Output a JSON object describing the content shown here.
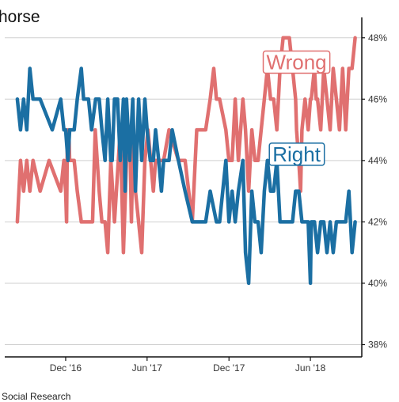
{
  "chart_data": {
    "type": "line",
    "title": "horse",
    "source": "Social Research",
    "xlabel": "",
    "ylabel": "",
    "x_axis": {
      "type": "date",
      "range": [
        "2016-08-01",
        "2018-09-15"
      ],
      "ticks": [
        {
          "date": "2016-12-01",
          "label": "Dec '16"
        },
        {
          "date": "2017-06-01",
          "label": "Jun '17"
        },
        {
          "date": "2017-12-01",
          "label": "Dec '17"
        },
        {
          "date": "2018-06-01",
          "label": "Jun '18"
        }
      ]
    },
    "y_axis": {
      "position": "right",
      "range": [
        37.6,
        48.2
      ],
      "ticks": [
        38,
        40,
        42,
        44,
        46,
        48
      ],
      "tick_suffix": "%"
    },
    "grid": {
      "horizontal": true,
      "vertical": false
    },
    "legend": "none",
    "series": [
      {
        "name": "Wrong",
        "color": "#e07070",
        "label_position": "2018-05-01",
        "label_value": 47,
        "points": [
          [
            "2016-08-15",
            42
          ],
          [
            "2016-08-22",
            44
          ],
          [
            "2016-08-29",
            43
          ],
          [
            "2016-09-05",
            44
          ],
          [
            "2016-09-12",
            43
          ],
          [
            "2016-09-19",
            44
          ],
          [
            "2016-10-05",
            43
          ],
          [
            "2016-10-25",
            44
          ],
          [
            "2016-11-20",
            43
          ],
          [
            "2016-11-27",
            44
          ],
          [
            "2016-12-01",
            43
          ],
          [
            "2016-12-03",
            42
          ],
          [
            "2016-12-05",
            45
          ],
          [
            "2016-12-08",
            45
          ],
          [
            "2016-12-10",
            44
          ],
          [
            "2016-12-20",
            44
          ],
          [
            "2016-12-27",
            43
          ],
          [
            "2017-01-05",
            42
          ],
          [
            "2017-01-30",
            42
          ],
          [
            "2017-02-05",
            45
          ],
          [
            "2017-02-14",
            43
          ],
          [
            "2017-02-20",
            42
          ],
          [
            "2017-02-27",
            42
          ],
          [
            "2017-03-05",
            41
          ],
          [
            "2017-03-12",
            44
          ],
          [
            "2017-03-20",
            42
          ],
          [
            "2017-04-02",
            45
          ],
          [
            "2017-04-09",
            41
          ],
          [
            "2017-04-16",
            44
          ],
          [
            "2017-04-23",
            45
          ],
          [
            "2017-04-27",
            42
          ],
          [
            "2017-05-01",
            45
          ],
          [
            "2017-05-06",
            43
          ],
          [
            "2017-05-13",
            42
          ],
          [
            "2017-05-20",
            41
          ],
          [
            "2017-05-27",
            44
          ],
          [
            "2017-06-03",
            45
          ],
          [
            "2017-06-15",
            43
          ],
          [
            "2017-06-20",
            44
          ],
          [
            "2017-06-27",
            44
          ],
          [
            "2017-07-03",
            44
          ],
          [
            "2017-07-08",
            44
          ],
          [
            "2017-07-20",
            45
          ],
          [
            "2017-08-10",
            44
          ],
          [
            "2017-08-25",
            44
          ],
          [
            "2017-09-10",
            42
          ],
          [
            "2017-09-20",
            45
          ],
          [
            "2017-10-10",
            45
          ],
          [
            "2017-10-20",
            46
          ],
          [
            "2017-10-28",
            47
          ],
          [
            "2017-11-03",
            46
          ],
          [
            "2017-11-10",
            46
          ],
          [
            "2017-11-24",
            45
          ],
          [
            "2017-12-01",
            44
          ],
          [
            "2017-12-08",
            44
          ],
          [
            "2017-12-15",
            46
          ],
          [
            "2017-12-22",
            44
          ],
          [
            "2018-01-01",
            46
          ],
          [
            "2018-01-07",
            45
          ],
          [
            "2018-01-14",
            43
          ],
          [
            "2018-01-21",
            45
          ],
          [
            "2018-01-28",
            44
          ],
          [
            "2018-02-04",
            44
          ],
          [
            "2018-02-11",
            45
          ],
          [
            "2018-02-18",
            46
          ],
          [
            "2018-02-25",
            47
          ],
          [
            "2018-03-04",
            46
          ],
          [
            "2018-03-11",
            46
          ],
          [
            "2018-03-18",
            45
          ],
          [
            "2018-03-25",
            47
          ],
          [
            "2018-04-01",
            48
          ],
          [
            "2018-04-15",
            48
          ],
          [
            "2018-04-22",
            47
          ],
          [
            "2018-04-29",
            46
          ],
          [
            "2018-05-01",
            45
          ],
          [
            "2018-05-06",
            44
          ],
          [
            "2018-05-10",
            43
          ],
          [
            "2018-05-13",
            45
          ],
          [
            "2018-05-20",
            46
          ],
          [
            "2018-05-27",
            45
          ],
          [
            "2018-06-01",
            46
          ],
          [
            "2018-06-03",
            46
          ],
          [
            "2018-06-10",
            47
          ],
          [
            "2018-06-14",
            46
          ],
          [
            "2018-06-17",
            46
          ],
          [
            "2018-06-24",
            45
          ],
          [
            "2018-07-01",
            47
          ],
          [
            "2018-07-08",
            46
          ],
          [
            "2018-07-15",
            45
          ],
          [
            "2018-07-22",
            47
          ],
          [
            "2018-07-29",
            46
          ],
          [
            "2018-08-05",
            45
          ],
          [
            "2018-08-12",
            47
          ],
          [
            "2018-08-19",
            45
          ],
          [
            "2018-08-26",
            47
          ],
          [
            "2018-09-02",
            47
          ],
          [
            "2018-09-09",
            48
          ]
        ]
      },
      {
        "name": "Right",
        "color": "#1b6fa3",
        "label_position": "2018-05-01",
        "label_value": 44,
        "points": [
          [
            "2016-08-15",
            46
          ],
          [
            "2016-08-22",
            45
          ],
          [
            "2016-08-29",
            46
          ],
          [
            "2016-09-05",
            45
          ],
          [
            "2016-09-12",
            47
          ],
          [
            "2016-09-19",
            46
          ],
          [
            "2016-10-05",
            46
          ],
          [
            "2016-11-01",
            45
          ],
          [
            "2016-11-20",
            46
          ],
          [
            "2016-11-27",
            45
          ],
          [
            "2016-12-01",
            45
          ],
          [
            "2016-12-06",
            44
          ],
          [
            "2016-12-10",
            45
          ],
          [
            "2016-12-20",
            45
          ],
          [
            "2016-12-27",
            46
          ],
          [
            "2017-01-05",
            47
          ],
          [
            "2017-01-10",
            46
          ],
          [
            "2017-01-21",
            46
          ],
          [
            "2017-01-28",
            45
          ],
          [
            "2017-02-06",
            46
          ],
          [
            "2017-02-14",
            46
          ],
          [
            "2017-02-20",
            45
          ],
          [
            "2017-02-27",
            44
          ],
          [
            "2017-03-05",
            46
          ],
          [
            "2017-03-12",
            44
          ],
          [
            "2017-03-15",
            44
          ],
          [
            "2017-03-20",
            46
          ],
          [
            "2017-03-27",
            46
          ],
          [
            "2017-04-02",
            44
          ],
          [
            "2017-04-09",
            46
          ],
          [
            "2017-04-13",
            43
          ],
          [
            "2017-04-16",
            46
          ],
          [
            "2017-04-23",
            44
          ],
          [
            "2017-04-30",
            46
          ],
          [
            "2017-05-06",
            43
          ],
          [
            "2017-05-13",
            46
          ],
          [
            "2017-05-20",
            44
          ],
          [
            "2017-05-27",
            46
          ],
          [
            "2017-06-01",
            45
          ],
          [
            "2017-06-08",
            44
          ],
          [
            "2017-06-15",
            44
          ],
          [
            "2017-06-20",
            45
          ],
          [
            "2017-06-27",
            44
          ],
          [
            "2017-07-03",
            43
          ],
          [
            "2017-07-08",
            44
          ],
          [
            "2017-07-20",
            44
          ],
          [
            "2017-07-27",
            45
          ],
          [
            "2017-08-10",
            44
          ],
          [
            "2017-08-25",
            43
          ],
          [
            "2017-09-10",
            42
          ],
          [
            "2017-09-20",
            42
          ],
          [
            "2017-10-10",
            42
          ],
          [
            "2017-10-20",
            43
          ],
          [
            "2017-11-03",
            42
          ],
          [
            "2017-11-10",
            42
          ],
          [
            "2017-11-24",
            44
          ],
          [
            "2017-12-01",
            42
          ],
          [
            "2017-12-08",
            43
          ],
          [
            "2017-12-15",
            42
          ],
          [
            "2017-12-22",
            43
          ],
          [
            "2018-01-01",
            44
          ],
          [
            "2018-01-07",
            41
          ],
          [
            "2018-01-14",
            40
          ],
          [
            "2018-01-21",
            43
          ],
          [
            "2018-01-28",
            42
          ],
          [
            "2018-02-04",
            42
          ],
          [
            "2018-02-11",
            41
          ],
          [
            "2018-02-18",
            43
          ],
          [
            "2018-02-25",
            44
          ],
          [
            "2018-03-04",
            43
          ],
          [
            "2018-03-11",
            43
          ],
          [
            "2018-03-18",
            44
          ],
          [
            "2018-03-25",
            42
          ],
          [
            "2018-04-01",
            42
          ],
          [
            "2018-04-15",
            42
          ],
          [
            "2018-04-22",
            42
          ],
          [
            "2018-04-29",
            43
          ],
          [
            "2018-05-06",
            43
          ],
          [
            "2018-05-13",
            42
          ],
          [
            "2018-05-20",
            42
          ],
          [
            "2018-05-27",
            42
          ],
          [
            "2018-06-01",
            40
          ],
          [
            "2018-06-03",
            42
          ],
          [
            "2018-06-10",
            42
          ],
          [
            "2018-06-17",
            41
          ],
          [
            "2018-06-24",
            42
          ],
          [
            "2018-07-01",
            42
          ],
          [
            "2018-07-08",
            41
          ],
          [
            "2018-07-15",
            42
          ],
          [
            "2018-07-22",
            41
          ],
          [
            "2018-07-29",
            42
          ],
          [
            "2018-08-05",
            42
          ],
          [
            "2018-08-12",
            42
          ],
          [
            "2018-08-19",
            42
          ],
          [
            "2018-08-26",
            43
          ],
          [
            "2018-09-02",
            41
          ],
          [
            "2018-09-09",
            42
          ]
        ]
      }
    ]
  }
}
